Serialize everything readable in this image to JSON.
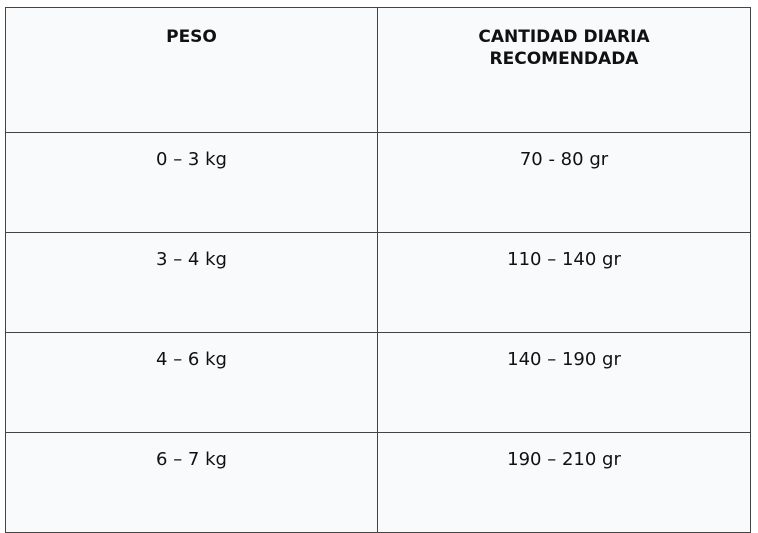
{
  "table": {
    "header": [
      "PESO",
      "CANTIDAD DIARIA RECOMENDADA"
    ],
    "rows": [
      [
        "0 – 3 kg",
        "70 - 80 gr"
      ],
      [
        "3 – 4 kg",
        "110 – 140 gr"
      ],
      [
        "4 – 6 kg",
        "140 – 190 gr"
      ],
      [
        "6 – 7 kg",
        "190 – 210 gr"
      ]
    ]
  }
}
